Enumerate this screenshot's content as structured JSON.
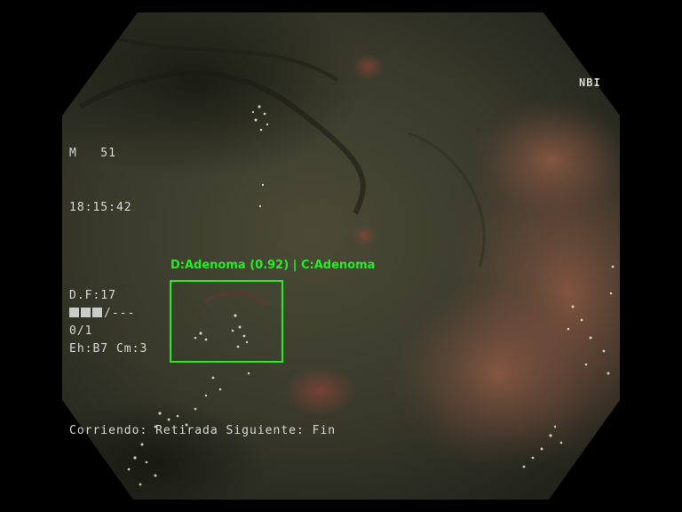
{
  "overlay": {
    "mode": "NBI",
    "patient_line": "M   51",
    "time": "18:15:42",
    "df": "D.F:17",
    "bar_suffix": "/---",
    "count": "0/1",
    "eh": "Eh:B7 Cm:3",
    "status": "Corriendo: Retirada Siguiente: Fin"
  },
  "detection": {
    "label": "D:Adenoma (0.92) | C:Adenoma",
    "color": "#22ee22"
  },
  "colors": {
    "tissue_dark": "#2c2e22",
    "tissue_mid": "#4a4a35",
    "tissue_warm": "#8a5a45",
    "frame": "#000000",
    "osd_text": "#d6dad6"
  }
}
